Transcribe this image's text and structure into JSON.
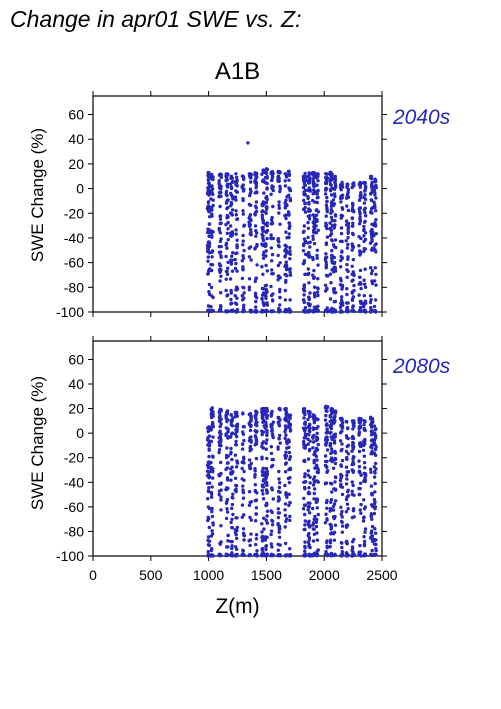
{
  "title": "Change in apr01 SWE vs. Z:",
  "scenario": "A1B",
  "colors": {
    "points": "#2727b8",
    "period_label": "#2727b8",
    "axes": "#000000"
  },
  "chart_data": [
    {
      "type": "scatter",
      "period": "2040s",
      "ylabel": "SWE Change (%)",
      "xlim": [
        0,
        2500
      ],
      "ylim": [
        -100,
        75
      ],
      "yticks": [
        60,
        40,
        20,
        0,
        -20,
        -40,
        -60,
        -80,
        -100
      ],
      "xticks": [
        0,
        500,
        1000,
        1500,
        2000,
        2500
      ],
      "x_tick_labels_shown": false,
      "grid": false,
      "series": [
        {
          "clusters": [
            {
              "x": [
                990,
                1010
              ],
              "y": [
                -100,
                13
              ],
              "n": 70
            },
            {
              "x": [
                1020,
                1040
              ],
              "y": [
                -100,
                12
              ],
              "n": 40
            },
            {
              "x": [
                1090,
                1110
              ],
              "y": [
                -100,
                12
              ],
              "n": 55
            },
            {
              "x": [
                1150,
                1170
              ],
              "y": [
                -100,
                12
              ],
              "n": 50
            },
            {
              "x": [
                1190,
                1210
              ],
              "y": [
                -100,
                10
              ],
              "n": 45
            },
            {
              "x": [
                1230,
                1250
              ],
              "y": [
                -100,
                12
              ],
              "n": 45
            },
            {
              "x": [
                1290,
                1310
              ],
              "y": [
                -100,
                12
              ],
              "n": 40
            },
            {
              "x": [
                1350,
                1370
              ],
              "y": [
                -100,
                12
              ],
              "n": 45
            },
            {
              "x": [
                1400,
                1420
              ],
              "y": [
                -100,
                13
              ],
              "n": 50
            },
            {
              "x": [
                1460,
                1480
              ],
              "y": [
                -100,
                15
              ],
              "n": 60
            },
            {
              "x": [
                1490,
                1510
              ],
              "y": [
                -100,
                16
              ],
              "n": 65
            },
            {
              "x": [
                1540,
                1560
              ],
              "y": [
                -100,
                14
              ],
              "n": 40
            },
            {
              "x": [
                1600,
                1620
              ],
              "y": [
                -100,
                14
              ],
              "n": 50
            },
            {
              "x": [
                1660,
                1680
              ],
              "y": [
                -100,
                14
              ],
              "n": 50
            },
            {
              "x": [
                1690,
                1710
              ],
              "y": [
                -100,
                14
              ],
              "n": 40
            },
            {
              "x": [
                1820,
                1840
              ],
              "y": [
                -100,
                13
              ],
              "n": 60
            },
            {
              "x": [
                1860,
                1880
              ],
              "y": [
                -100,
                13
              ],
              "n": 60
            },
            {
              "x": [
                1900,
                1920
              ],
              "y": [
                -100,
                13
              ],
              "n": 55
            },
            {
              "x": [
                1930,
                1950
              ],
              "y": [
                -100,
                12
              ],
              "n": 45
            },
            {
              "x": [
                2010,
                2030
              ],
              "y": [
                -100,
                12
              ],
              "n": 55
            },
            {
              "x": [
                2050,
                2070
              ],
              "y": [
                -100,
                13
              ],
              "n": 60
            },
            {
              "x": [
                2080,
                2100
              ],
              "y": [
                -100,
                10
              ],
              "n": 50
            },
            {
              "x": [
                2140,
                2160
              ],
              "y": [
                -100,
                5
              ],
              "n": 50
            },
            {
              "x": [
                2190,
                2210
              ],
              "y": [
                -100,
                5
              ],
              "n": 45
            },
            {
              "x": [
                2240,
                2260
              ],
              "y": [
                -100,
                5
              ],
              "n": 50
            },
            {
              "x": [
                2300,
                2320
              ],
              "y": [
                -100,
                5
              ],
              "n": 50
            },
            {
              "x": [
                2340,
                2360
              ],
              "y": [
                -100,
                5
              ],
              "n": 50
            },
            {
              "x": [
                2400,
                2420
              ],
              "y": [
                -100,
                10
              ],
              "n": 50
            },
            {
              "x": [
                2430,
                2450
              ],
              "y": [
                -100,
                8
              ],
              "n": 45
            }
          ],
          "points": [
            [
              1340,
              37
            ]
          ]
        }
      ]
    },
    {
      "type": "scatter",
      "period": "2080s",
      "ylabel": "SWE Change (%)",
      "xlabel": "Z(m)",
      "xlim": [
        0,
        2500
      ],
      "ylim": [
        -100,
        75
      ],
      "yticks": [
        60,
        40,
        20,
        0,
        -20,
        -40,
        -60,
        -80,
        -100
      ],
      "xticks": [
        0,
        500,
        1000,
        1500,
        2000,
        2500
      ],
      "x_tick_labels_shown": true,
      "grid": false,
      "series": [
        {
          "clusters": [
            {
              "x": [
                990,
                1010
              ],
              "y": [
                -100,
                5
              ],
              "n": 60
            },
            {
              "x": [
                1020,
                1040
              ],
              "y": [
                -100,
                22
              ],
              "n": 50
            },
            {
              "x": [
                1090,
                1110
              ],
              "y": [
                -100,
                20
              ],
              "n": 55
            },
            {
              "x": [
                1150,
                1170
              ],
              "y": [
                -100,
                18
              ],
              "n": 50
            },
            {
              "x": [
                1190,
                1210
              ],
              "y": [
                -100,
                15
              ],
              "n": 45
            },
            {
              "x": [
                1230,
                1250
              ],
              "y": [
                -100,
                18
              ],
              "n": 45
            },
            {
              "x": [
                1290,
                1310
              ],
              "y": [
                -100,
                18
              ],
              "n": 40
            },
            {
              "x": [
                1350,
                1370
              ],
              "y": [
                -100,
                16
              ],
              "n": 45
            },
            {
              "x": [
                1400,
                1420
              ],
              "y": [
                -100,
                18
              ],
              "n": 50
            },
            {
              "x": [
                1460,
                1480
              ],
              "y": [
                -100,
                20
              ],
              "n": 60
            },
            {
              "x": [
                1490,
                1510
              ],
              "y": [
                -100,
                20
              ],
              "n": 65
            },
            {
              "x": [
                1540,
                1560
              ],
              "y": [
                -100,
                18
              ],
              "n": 40
            },
            {
              "x": [
                1600,
                1620
              ],
              "y": [
                -100,
                20
              ],
              "n": 50
            },
            {
              "x": [
                1660,
                1680
              ],
              "y": [
                -100,
                20
              ],
              "n": 50
            },
            {
              "x": [
                1690,
                1710
              ],
              "y": [
                -100,
                15
              ],
              "n": 40
            },
            {
              "x": [
                1820,
                1840
              ],
              "y": [
                -100,
                20
              ],
              "n": 60
            },
            {
              "x": [
                1860,
                1880
              ],
              "y": [
                -100,
                18
              ],
              "n": 60
            },
            {
              "x": [
                1900,
                1920
              ],
              "y": [
                -100,
                15
              ],
              "n": 55
            },
            {
              "x": [
                1930,
                1950
              ],
              "y": [
                -100,
                12
              ],
              "n": 45
            },
            {
              "x": [
                2010,
                2030
              ],
              "y": [
                -100,
                22
              ],
              "n": 55
            },
            {
              "x": [
                2050,
                2070
              ],
              "y": [
                -100,
                20
              ],
              "n": 60
            },
            {
              "x": [
                2080,
                2100
              ],
              "y": [
                -100,
                18
              ],
              "n": 50
            },
            {
              "x": [
                2140,
                2160
              ],
              "y": [
                -100,
                12
              ],
              "n": 50
            },
            {
              "x": [
                2190,
                2210
              ],
              "y": [
                -100,
                10
              ],
              "n": 45
            },
            {
              "x": [
                2240,
                2260
              ],
              "y": [
                -100,
                10
              ],
              "n": 50
            },
            {
              "x": [
                2300,
                2320
              ],
              "y": [
                -100,
                12
              ],
              "n": 50
            },
            {
              "x": [
                2340,
                2360
              ],
              "y": [
                -100,
                10
              ],
              "n": 50
            },
            {
              "x": [
                2400,
                2420
              ],
              "y": [
                -100,
                15
              ],
              "n": 50
            },
            {
              "x": [
                2430,
                2450
              ],
              "y": [
                -100,
                8
              ],
              "n": 45
            }
          ],
          "points": []
        }
      ]
    }
  ]
}
